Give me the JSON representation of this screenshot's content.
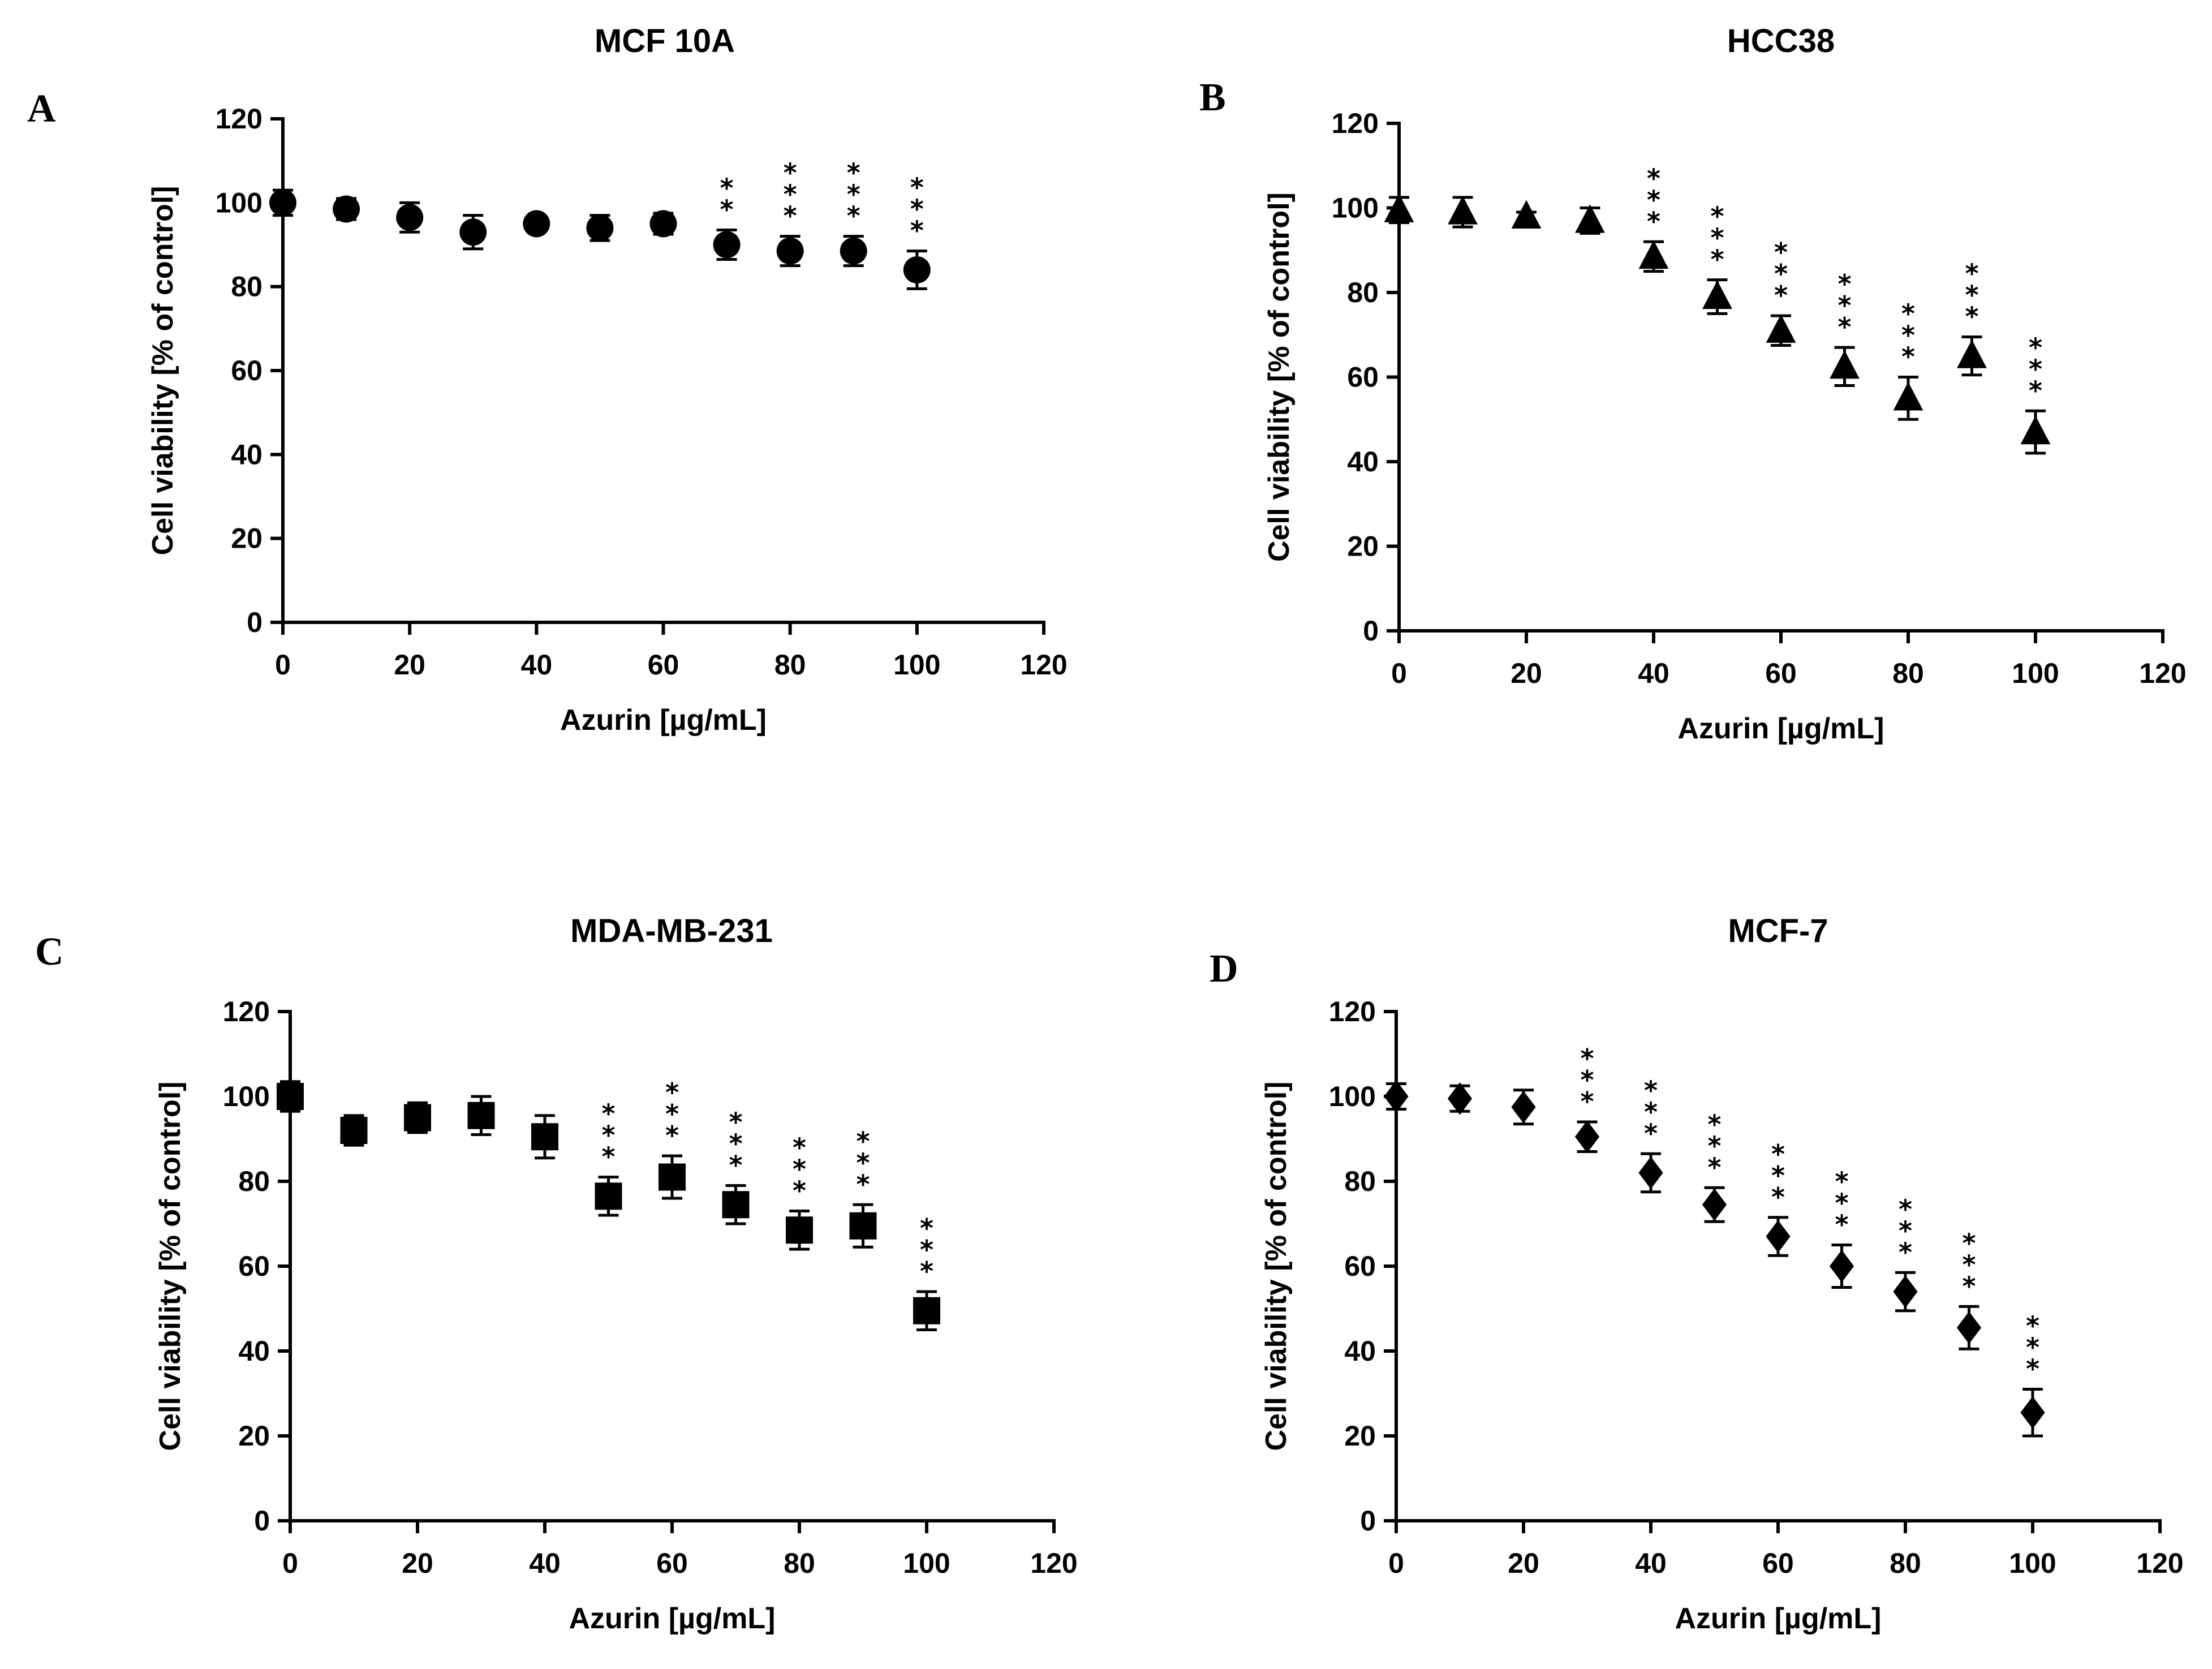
{
  "figure": {
    "panels": [
      {
        "letter": "A",
        "title": "MCF 10A",
        "marker": "circle"
      },
      {
        "letter": "B",
        "title": "HCC38",
        "marker": "triangle"
      },
      {
        "letter": "C",
        "title": "MDA-MB-231",
        "marker": "square"
      },
      {
        "letter": "D",
        "title": "MCF-7",
        "marker": "diamond"
      }
    ]
  },
  "chart_data": [
    {
      "type": "scatter",
      "title": "MCF 10A",
      "panel": "A",
      "xlabel": "Azurin [µg/mL]",
      "ylabel": "Cell viability [% of control]",
      "xlim": [
        0,
        120
      ],
      "ylim": [
        0,
        120
      ],
      "xticks": [
        0,
        20,
        40,
        60,
        80,
        100,
        120
      ],
      "yticks": [
        0,
        20,
        40,
        60,
        80,
        100,
        120
      ],
      "x": [
        0,
        10,
        20,
        30,
        40,
        50,
        60,
        70,
        80,
        90,
        100
      ],
      "y": [
        100,
        98.5,
        96.5,
        93,
        95,
        94,
        95,
        90,
        88.5,
        88.5,
        84
      ],
      "error": [
        3,
        2.5,
        3.5,
        4,
        1,
        3,
        2.5,
        3.5,
        3.5,
        3.5,
        4.5
      ],
      "significance": [
        "",
        "",
        "",
        "",
        "",
        "",
        "",
        "**",
        "***",
        "***",
        "***"
      ]
    },
    {
      "type": "scatter",
      "title": "HCC38",
      "panel": "B",
      "xlabel": "Azurin [µg/mL]",
      "ylabel": "Cell viability [% of control]",
      "xlim": [
        0,
        120
      ],
      "ylim": [
        0,
        120
      ],
      "xticks": [
        0,
        20,
        40,
        60,
        80,
        100,
        120
      ],
      "yticks": [
        0,
        20,
        40,
        60,
        80,
        100,
        120
      ],
      "x": [
        0,
        10,
        20,
        30,
        40,
        50,
        60,
        70,
        80,
        90,
        100
      ],
      "y": [
        99.5,
        99,
        98,
        97,
        88.5,
        79,
        71,
        62.5,
        55,
        65,
        47
      ],
      "error": [
        3,
        3.5,
        1,
        3,
        3.5,
        4,
        3.5,
        4.5,
        5,
        4.5,
        5
      ],
      "significance": [
        "",
        "",
        "",
        "",
        "***",
        "***",
        "***",
        "***",
        "***",
        "***",
        "***"
      ]
    },
    {
      "type": "scatter",
      "title": "MDA-MB-231",
      "panel": "C",
      "xlabel": "Azurin [µg/mL]",
      "ylabel": "Cell viability [% of control]",
      "xlim": [
        0,
        120
      ],
      "ylim": [
        0,
        120
      ],
      "xticks": [
        0,
        20,
        40,
        60,
        80,
        100,
        120
      ],
      "yticks": [
        0,
        20,
        40,
        60,
        80,
        100,
        120
      ],
      "x": [
        0,
        10,
        20,
        30,
        40,
        50,
        60,
        70,
        80,
        90,
        100
      ],
      "y": [
        100,
        92,
        95,
        95.5,
        90.5,
        76.5,
        81,
        74.5,
        68.5,
        69.5,
        49.5
      ],
      "error": [
        3.5,
        3.5,
        3.5,
        4.5,
        5,
        4.5,
        5,
        4.5,
        4.5,
        5,
        4.5
      ],
      "significance": [
        "",
        "",
        "",
        "",
        "",
        "***",
        "***",
        "***",
        "***",
        "***",
        "***"
      ]
    },
    {
      "type": "scatter",
      "title": "MCF-7",
      "panel": "D",
      "xlabel": "Azurin [µg/mL]",
      "ylabel": "Cell viability [% of control]",
      "xlim": [
        0,
        120
      ],
      "ylim": [
        0,
        120
      ],
      "xticks": [
        0,
        20,
        40,
        60,
        80,
        100,
        120
      ],
      "yticks": [
        0,
        20,
        40,
        60,
        80,
        100,
        120
      ],
      "x": [
        0,
        10,
        20,
        30,
        40,
        50,
        60,
        70,
        80,
        90,
        100
      ],
      "y": [
        100,
        99.5,
        97.5,
        90.5,
        82,
        74.5,
        67,
        60,
        54,
        45.5,
        25.5
      ],
      "error": [
        3,
        3,
        4,
        3.5,
        4.5,
        4,
        4.5,
        5,
        4.5,
        5,
        5.5
      ],
      "significance": [
        "",
        "",
        "",
        "***",
        "***",
        "***",
        "***",
        "***",
        "***",
        "***",
        "***"
      ]
    }
  ]
}
